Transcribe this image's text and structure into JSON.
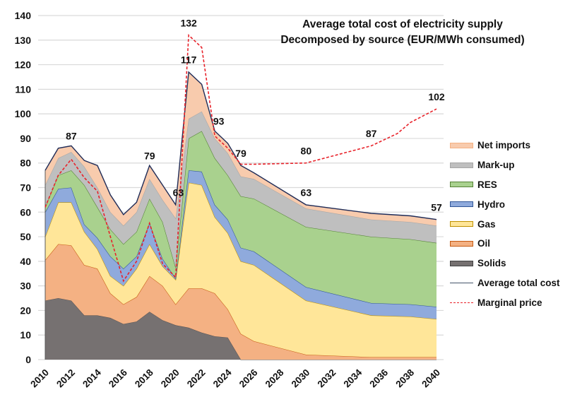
{
  "chart_data": {
    "type": "area",
    "title": "Average total cost of electricity supply",
    "subtitle": "Decomposed by source (EUR/MWh consumed)",
    "xlabel": "",
    "ylabel": "",
    "ylim": [
      0,
      140
    ],
    "xlim": [
      2010,
      2040
    ],
    "yticks": [
      0,
      10,
      20,
      30,
      40,
      50,
      60,
      70,
      80,
      90,
      100,
      110,
      120,
      130,
      140
    ],
    "xticks": [
      "2010",
      "2012",
      "2014",
      "2016",
      "2018",
      "2020",
      "2022",
      "2024",
      "2026",
      "2028",
      "2030",
      "2032",
      "2034",
      "2036",
      "2038",
      "2040"
    ],
    "grid": true,
    "legend_position": "right",
    "stacked": true,
    "x": [
      2010,
      2011,
      2012,
      2013,
      2014,
      2015,
      2016,
      2017,
      2018,
      2019,
      2020,
      2021,
      2022,
      2023,
      2024,
      2025,
      2026,
      2030,
      2035,
      2038,
      2040
    ],
    "series": [
      {
        "name": "Solids",
        "color": "#767171",
        "edge": "#5a5656",
        "values": [
          24,
          25,
          24,
          18,
          18,
          17,
          14.5,
          15.5,
          19.5,
          16,
          14,
          13,
          11,
          9.5,
          9,
          0,
          0,
          0,
          0,
          0,
          0
        ]
      },
      {
        "name": "Oil",
        "color": "#f4b183",
        "edge": "#c55a11",
        "values": [
          16.5,
          22,
          22.5,
          20.5,
          19,
          10,
          8,
          10,
          14.5,
          14,
          8.5,
          16,
          18,
          17.5,
          11.5,
          10.5,
          7.5,
          2,
          1,
          1,
          1
        ]
      },
      {
        "name": "Gas",
        "color": "#ffe699",
        "edge": "#bf9000",
        "values": [
          9.5,
          17,
          17.5,
          13.5,
          8,
          7,
          7.5,
          11.5,
          13,
          8,
          10,
          43,
          42,
          31,
          31,
          29.5,
          31,
          22,
          17,
          16.5,
          15.5
        ]
      },
      {
        "name": "Hydro",
        "color": "#8faadc",
        "edge": "#2f5597",
        "values": [
          10,
          5.5,
          6,
          3,
          4.5,
          8,
          7,
          5,
          8.5,
          3,
          0.5,
          5,
          5.5,
          5,
          5.5,
          5.5,
          5.5,
          5.5,
          5,
          5,
          5
        ]
      },
      {
        "name": "RES",
        "color": "#a9d18e",
        "edge": "#548235",
        "values": [
          2,
          5.5,
          7,
          16,
          12.5,
          11,
          10,
          10,
          10,
          15,
          4.5,
          13,
          16.5,
          19,
          18,
          21,
          21.5,
          24.5,
          27,
          26.5,
          26
        ]
      },
      {
        "name": "Mark-up",
        "color": "#bfbfbf",
        "edge": "#a6a6a6",
        "values": [
          9,
          7,
          7.5,
          7.5,
          8,
          7,
          7.5,
          8,
          8,
          9,
          20,
          8,
          8,
          8,
          9,
          8,
          8,
          7.5,
          7,
          7,
          7
        ]
      },
      {
        "name": "Net imports",
        "color": "#f8cbad",
        "edge": "#f4b183",
        "values": [
          6,
          4,
          2.5,
          2.5,
          9,
          7,
          4.5,
          4,
          5.5,
          6,
          5.5,
          19,
          11,
          3,
          4,
          4.5,
          2.5,
          1.5,
          2.5,
          2.5,
          2.5
        ]
      }
    ],
    "lines": [
      {
        "name": "Average total cost",
        "color": "#1f2d5a",
        "style": "solid",
        "x": [
          2010,
          2011,
          2012,
          2013,
          2014,
          2015,
          2016,
          2017,
          2018,
          2019,
          2020,
          2021,
          2022,
          2023,
          2024,
          2025,
          2026,
          2030,
          2035,
          2038,
          2040
        ],
        "values": [
          77,
          86,
          87,
          81,
          79,
          67,
          59,
          64,
          79,
          71,
          63,
          117,
          112,
          93,
          88,
          79,
          76,
          63,
          59.5,
          58.5,
          57
        ]
      },
      {
        "name": "Marginal price",
        "color": "#e8222a",
        "style": "dashed",
        "x": [
          2010,
          2011,
          2012,
          2013,
          2014,
          2015,
          2016,
          2017,
          2018,
          2019,
          2020,
          2021,
          2022,
          2023,
          2024,
          2025,
          2026,
          2030,
          2035,
          2037,
          2038,
          2040
        ],
        "values": [
          62,
          75,
          81.5,
          74,
          68.5,
          50,
          32,
          40,
          55.5,
          39,
          33.5,
          132,
          127,
          91,
          86,
          79.5,
          79.5,
          80,
          87,
          92,
          96.5,
          102
        ]
      }
    ],
    "annotations": [
      {
        "text": "87",
        "x": 2012,
        "y": 91
      },
      {
        "text": "79",
        "x": 2018,
        "y": 83
      },
      {
        "text": "63",
        "x": 2020.2,
        "y": 68
      },
      {
        "text": "132",
        "x": 2021,
        "y": 137
      },
      {
        "text": "117",
        "x": 2021,
        "y": 122
      },
      {
        "text": "93",
        "x": 2023.3,
        "y": 97
      },
      {
        "text": "79",
        "x": 2025,
        "y": 84
      },
      {
        "text": "80",
        "x": 2030,
        "y": 85
      },
      {
        "text": "63",
        "x": 2030,
        "y": 68
      },
      {
        "text": "87",
        "x": 2035,
        "y": 92
      },
      {
        "text": "102",
        "x": 2040,
        "y": 107
      },
      {
        "text": "57",
        "x": 2040,
        "y": 62
      }
    ],
    "legend": [
      {
        "label": "Net imports",
        "kind": "area",
        "color": "#f8cbad",
        "edge": "#f4b183"
      },
      {
        "label": "Mark-up",
        "kind": "area",
        "color": "#bfbfbf",
        "edge": "#a6a6a6"
      },
      {
        "label": "RES",
        "kind": "area",
        "color": "#a9d18e",
        "edge": "#548235"
      },
      {
        "label": "Hydro",
        "kind": "area",
        "color": "#8faadc",
        "edge": "#2f5597"
      },
      {
        "label": "Gas",
        "kind": "area",
        "color": "#ffe699",
        "edge": "#bf9000"
      },
      {
        "label": "Oil",
        "kind": "area",
        "color": "#f4b183",
        "edge": "#c55a11"
      },
      {
        "label": "Solids",
        "kind": "area",
        "color": "#767171",
        "edge": "#404040"
      },
      {
        "label": "Average total cost",
        "kind": "line",
        "color": "#44546a",
        "style": "solid"
      },
      {
        "label": "Marginal price",
        "kind": "line",
        "color": "#e8222a",
        "style": "dashed"
      }
    ]
  }
}
